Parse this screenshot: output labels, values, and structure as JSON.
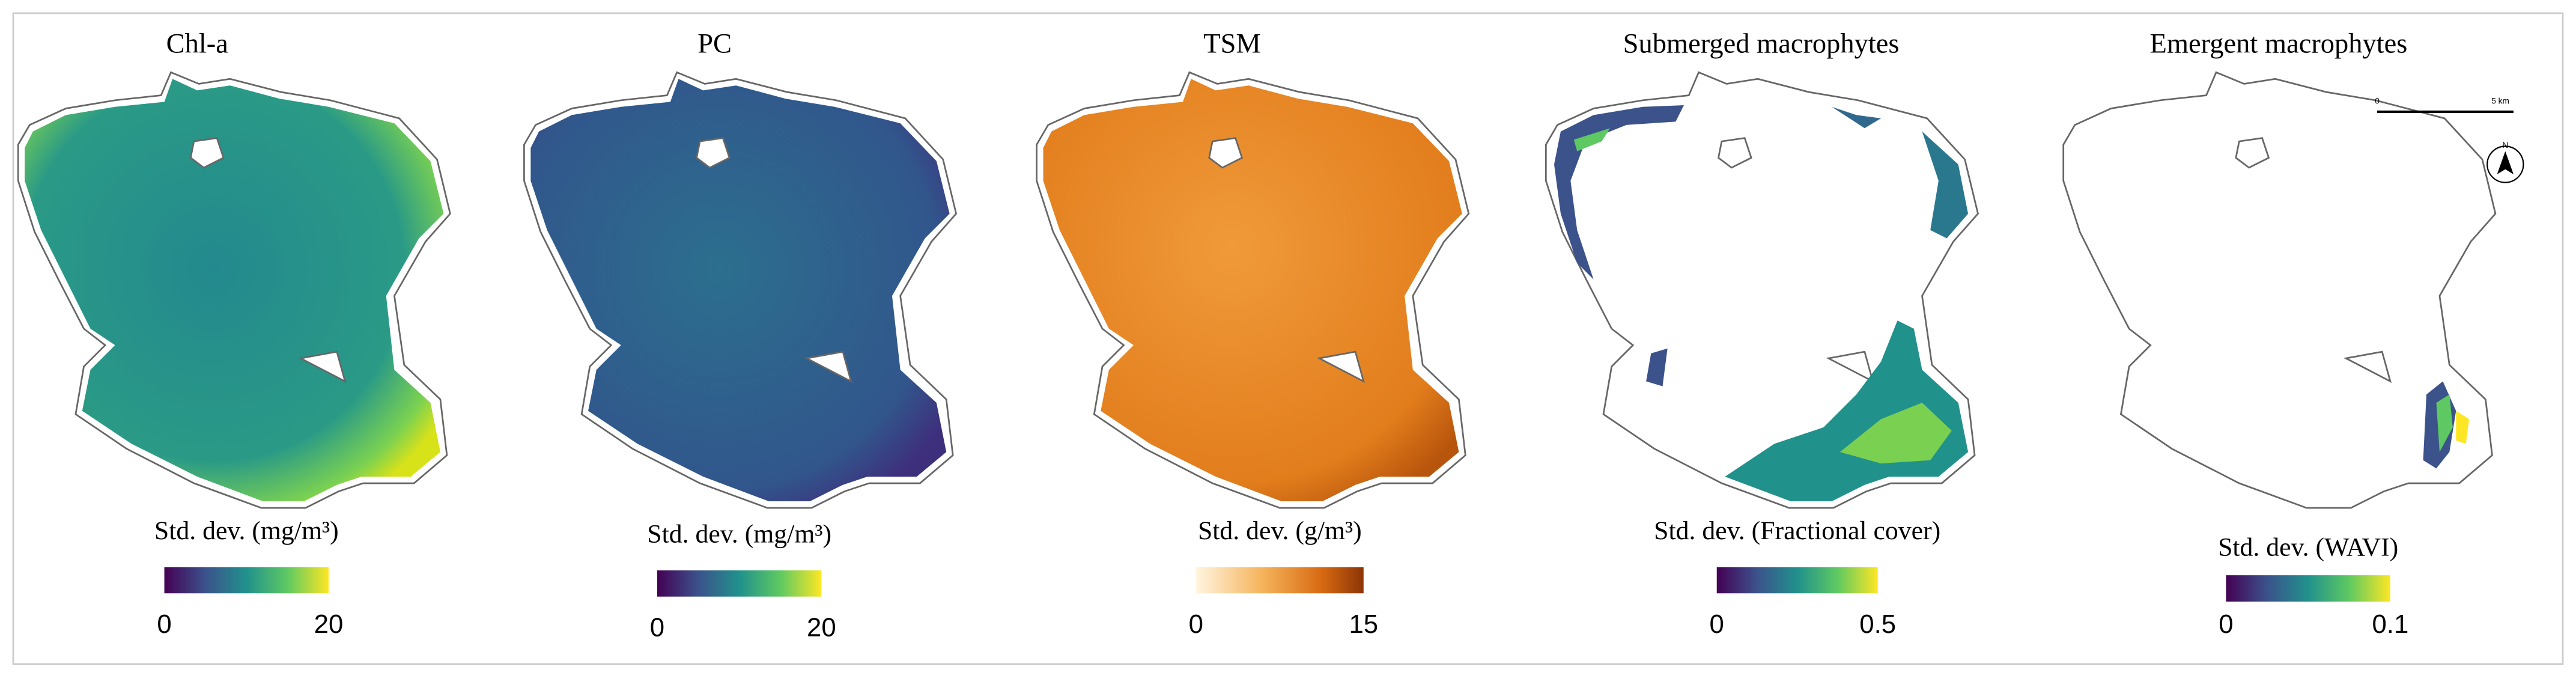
{
  "panels": [
    {
      "title": "Chl-a",
      "colorbar": {
        "label": "Std. dev. (mg/m³)",
        "ticks": [
          "0",
          "20"
        ]
      }
    },
    {
      "title": "PC",
      "colorbar": {
        "label": "Std. dev. (mg/m³)",
        "ticks": [
          "0",
          "20"
        ]
      }
    },
    {
      "title": "TSM",
      "colorbar": {
        "label": "Std. dev. (g/m³)",
        "ticks": [
          "0",
          "15"
        ]
      }
    },
    {
      "title": "Submerged macrophytes",
      "colorbar": {
        "label": "Std. dev. (Fractional cover)",
        "ticks": [
          "0",
          "0.5"
        ]
      }
    },
    {
      "title": "Emergent macrophytes",
      "colorbar": {
        "label": "Std. dev. (WAVI)",
        "ticks": [
          "0",
          "0.1"
        ]
      }
    }
  ],
  "scale_bar": {
    "start": "0",
    "end": "5 km"
  },
  "north_arrow": "N"
}
